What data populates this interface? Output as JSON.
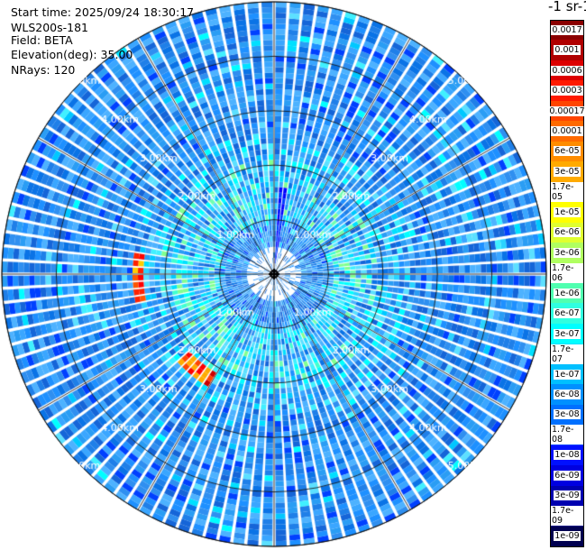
{
  "info": {
    "start_time": "Start time: 2025/09/24 18:30:17",
    "device": "WLS200s-181",
    "field": "Field: BETA",
    "elevation": "Elevation(deg): 35.00",
    "nrays": "NRays: 120"
  },
  "colorbar": {
    "title": "-1 sr-1",
    "levels": [
      "0.0017",
      "0.001",
      "0.0006",
      "0.0003",
      "0.00017",
      "0.0001",
      "6e-05",
      "3e-05",
      "1.7e-05",
      "1e-05",
      "6e-06",
      "3e-06",
      "1.7e-06",
      "1e-06",
      "6e-07",
      "3e-07",
      "1.7e-07",
      "1e-07",
      "6e-08",
      "3e-08",
      "1.7e-08",
      "1e-08",
      "6e-09",
      "3e-09",
      "1.7e-09",
      "1e-09"
    ],
    "colors": [
      "#8b0000",
      "#b00000",
      "#dd0000",
      "#ff1a00",
      "#ff4500",
      "#ff6a00",
      "#ff8c00",
      "#ffaa00",
      "#ffd000",
      "#ffff00",
      "#e0ff30",
      "#b0ff60",
      "#80ff80",
      "#50ffb0",
      "#30ffe0",
      "#00ffff",
      "#00e0ff",
      "#00c0ff",
      "#0090ff",
      "#0070ff",
      "#0040ff",
      "#0010ff",
      "#0000e0",
      "#0000b0",
      "#000080",
      "#000050"
    ]
  },
  "chart_data": {
    "type": "heatmap",
    "projection": "polar-ppi",
    "field": "BETA",
    "n_rays": 120,
    "elevation_deg": 35.0,
    "range_rings_km": [
      1,
      2,
      3,
      4,
      5
    ],
    "range_labels": [
      "1.00km",
      "2.00km",
      "3.00km",
      "4.00km",
      "5.00km"
    ],
    "max_range_km": 5.0,
    "azimuth_spokes_deg": [
      0,
      30,
      60,
      90,
      120,
      150,
      180,
      210,
      240,
      270,
      300,
      330
    ],
    "background_value": "1e-07",
    "features": [
      {
        "name": "strong-return-west",
        "azimuth_range_deg": [
          258,
          278
        ],
        "range_km": [
          2.45,
          2.6
        ],
        "value": "0.0003"
      },
      {
        "name": "strong-return-southwest",
        "azimuth_range_deg": [
          208,
          225
        ],
        "range_km": [
          2.15,
          2.35
        ],
        "value": "0.0006"
      },
      {
        "name": "narrow-return-north",
        "azimuth_range_deg": [
          2,
          6
        ],
        "range_km": [
          0.2,
          1.6
        ],
        "value": "6e-09"
      },
      {
        "name": "near-field-ring",
        "azimuth_range_deg": [
          0,
          360
        ],
        "range_km": [
          1.0,
          2.0
        ],
        "value": "3e-07"
      }
    ]
  }
}
